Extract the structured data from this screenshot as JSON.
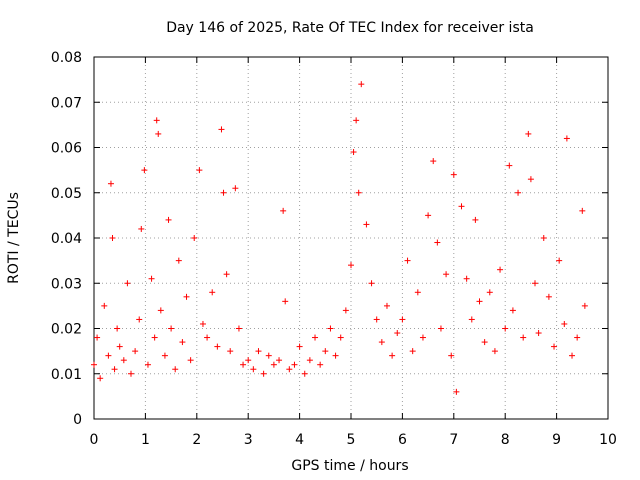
{
  "chart_data": {
    "type": "scatter",
    "title": "Day 146 of 2025, Rate Of TEC Index for receiver ista",
    "xlabel": "GPS time / hours",
    "ylabel": "ROTI / TECUs",
    "xlim": [
      0,
      10
    ],
    "ylim": [
      0,
      0.08
    ],
    "x_ticks": [
      0,
      1,
      2,
      3,
      4,
      5,
      6,
      7,
      8,
      9,
      10
    ],
    "x_tick_labels": [
      "0",
      "1",
      "2",
      "3",
      "4",
      "5",
      "6",
      "7",
      "8",
      "9",
      "10"
    ],
    "y_ticks": [
      0,
      0.01,
      0.02,
      0.03,
      0.04,
      0.05,
      0.06,
      0.07,
      0.08
    ],
    "y_tick_labels": [
      "0",
      "0.01",
      "0.02",
      "0.03",
      "0.04",
      "0.05",
      "0.06",
      "0.07",
      "0.08"
    ],
    "grid": true,
    "marker": "+",
    "color": "#ff0000",
    "series": [
      {
        "name": "ROTI",
        "x": [
          0.0,
          0.06,
          0.12,
          0.2,
          0.28,
          0.33,
          0.36,
          0.4,
          0.45,
          0.5,
          0.58,
          0.65,
          0.72,
          0.8,
          0.88,
          0.92,
          0.98,
          1.05,
          1.12,
          1.18,
          1.22,
          1.25,
          1.3,
          1.38,
          1.45,
          1.5,
          1.58,
          1.65,
          1.72,
          1.8,
          1.88,
          1.95,
          2.05,
          2.12,
          2.2,
          2.3,
          2.4,
          2.48,
          2.52,
          2.58,
          2.65,
          2.75,
          2.82,
          2.9,
          3.0,
          3.1,
          3.2,
          3.3,
          3.4,
          3.5,
          3.6,
          3.68,
          3.72,
          3.8,
          3.9,
          4.0,
          4.1,
          4.2,
          4.3,
          4.4,
          4.5,
          4.6,
          4.7,
          4.8,
          4.9,
          5.0,
          5.05,
          5.1,
          5.15,
          5.2,
          5.3,
          5.4,
          5.5,
          5.6,
          5.7,
          5.8,
          5.9,
          6.0,
          6.1,
          6.2,
          6.3,
          6.4,
          6.5,
          6.6,
          6.68,
          6.75,
          6.85,
          6.95,
          7.0,
          7.05,
          7.15,
          7.25,
          7.35,
          7.42,
          7.5,
          7.6,
          7.7,
          7.8,
          7.9,
          8.0,
          8.08,
          8.15,
          8.25,
          8.35,
          8.45,
          8.5,
          8.58,
          8.65,
          8.75,
          8.85,
          8.95,
          9.05,
          9.15,
          9.2,
          9.3,
          9.4,
          9.5,
          9.55
        ],
        "y": [
          0.012,
          0.018,
          0.009,
          0.025,
          0.014,
          0.052,
          0.04,
          0.011,
          0.02,
          0.016,
          0.013,
          0.03,
          0.01,
          0.015,
          0.022,
          0.042,
          0.055,
          0.012,
          0.031,
          0.018,
          0.066,
          0.063,
          0.024,
          0.014,
          0.044,
          0.02,
          0.011,
          0.035,
          0.017,
          0.027,
          0.013,
          0.04,
          0.055,
          0.021,
          0.018,
          0.028,
          0.016,
          0.064,
          0.05,
          0.032,
          0.015,
          0.051,
          0.02,
          0.012,
          0.013,
          0.011,
          0.015,
          0.01,
          0.014,
          0.012,
          0.013,
          0.046,
          0.026,
          0.011,
          0.012,
          0.016,
          0.01,
          0.013,
          0.018,
          0.012,
          0.015,
          0.02,
          0.014,
          0.018,
          0.024,
          0.034,
          0.059,
          0.066,
          0.05,
          0.074,
          0.043,
          0.03,
          0.022,
          0.017,
          0.025,
          0.014,
          0.019,
          0.022,
          0.035,
          0.015,
          0.028,
          0.018,
          0.045,
          0.057,
          0.039,
          0.02,
          0.032,
          0.014,
          0.054,
          0.006,
          0.047,
          0.031,
          0.022,
          0.044,
          0.026,
          0.017,
          0.028,
          0.015,
          0.033,
          0.02,
          0.056,
          0.024,
          0.05,
          0.018,
          0.063,
          0.053,
          0.03,
          0.019,
          0.04,
          0.027,
          0.016,
          0.035,
          0.021,
          0.062,
          0.014,
          0.018,
          0.046,
          0.025
        ]
      }
    ]
  }
}
